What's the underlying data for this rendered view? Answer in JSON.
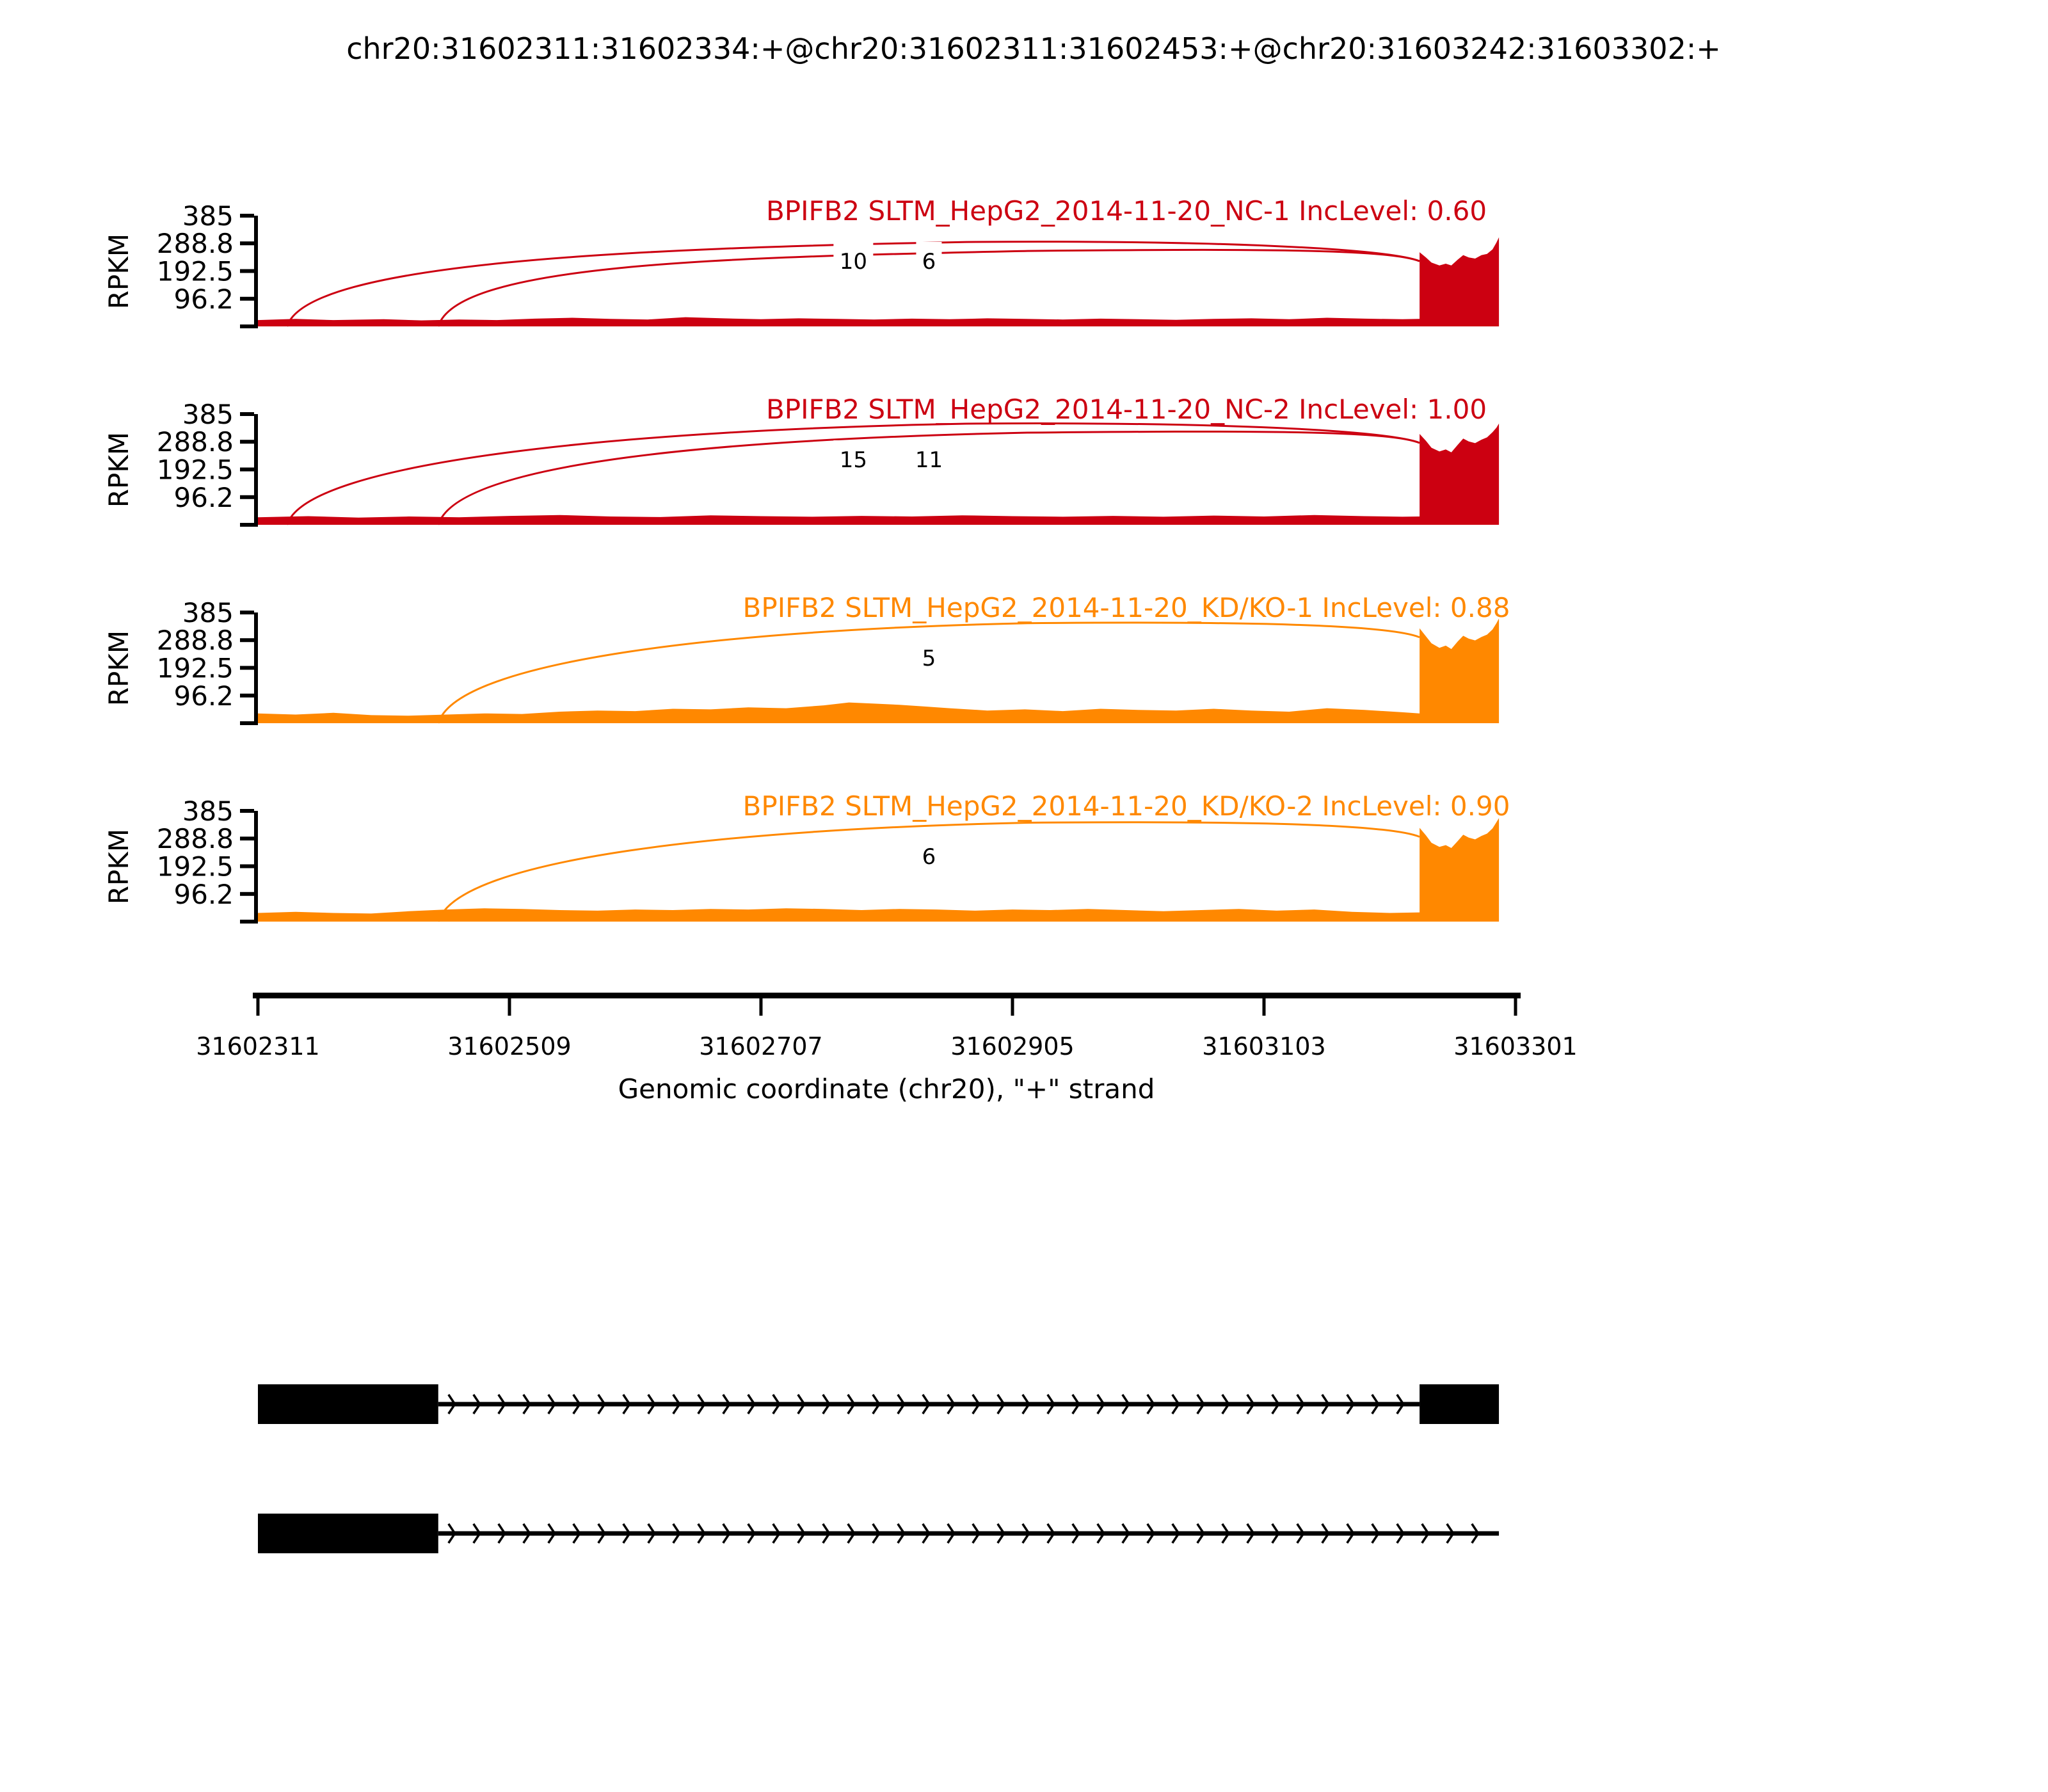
{
  "title": "chr20:31602311:31602334:+@chr20:31602311:31602453:+@chr20:31603242:31603302:+",
  "y_axis": {
    "label": "RPKM",
    "tick_labels": [
      "385",
      "288.8",
      "192.5",
      "96.2"
    ],
    "tick_values": [
      385,
      288.8,
      192.5,
      96.2
    ],
    "max": 385
  },
  "x_axis": {
    "label": "Genomic coordinate (chr20), \"+\" strand",
    "tick_labels": [
      "31602311",
      "31602509",
      "31602707",
      "31602905",
      "31603103",
      "31603301"
    ],
    "tick_values": [
      31602311,
      31602509,
      31602707,
      31602905,
      31603103,
      31603301
    ]
  },
  "chart_data": {
    "type": "sashimi",
    "region": {
      "chrom": "chr20",
      "start": 31602311,
      "end": 31603301,
      "strand": "+"
    },
    "event_exons": {
      "short_exon": [
        31602311,
        31602334
      ],
      "long_exon": [
        31602311,
        31602453
      ],
      "downstream_exon": [
        31603242,
        31603302
      ]
    },
    "rpkm_axis_max": 385,
    "tracks": [
      {
        "id": "NC-1",
        "label": "BPIFB2 SLTM_HepG2_2014-11-20_NC-1 IncLevel: 0.60",
        "color": "#CC0011",
        "inc_level": "0.60",
        "junctions": [
          {
            "from": 31602334,
            "to": 31603242,
            "reads": "10"
          },
          {
            "from": 31602453,
            "to": 31603242,
            "reads": "6"
          }
        ],
        "band": [
          [
            0,
            22
          ],
          [
            0.03,
            26
          ],
          [
            0.06,
            22
          ],
          [
            0.1,
            25
          ],
          [
            0.13,
            21
          ],
          [
            0.16,
            24
          ],
          [
            0.19,
            22
          ],
          [
            0.22,
            27
          ],
          [
            0.25,
            30
          ],
          [
            0.28,
            26
          ],
          [
            0.31,
            24
          ],
          [
            0.34,
            32
          ],
          [
            0.37,
            28
          ],
          [
            0.4,
            25
          ],
          [
            0.43,
            28
          ],
          [
            0.46,
            26
          ],
          [
            0.49,
            24
          ],
          [
            0.52,
            27
          ],
          [
            0.55,
            25
          ],
          [
            0.58,
            28
          ],
          [
            0.61,
            26
          ],
          [
            0.64,
            24
          ],
          [
            0.67,
            27
          ],
          [
            0.7,
            25
          ],
          [
            0.73,
            23
          ],
          [
            0.76,
            26
          ],
          [
            0.79,
            28
          ],
          [
            0.82,
            25
          ],
          [
            0.85,
            30
          ],
          [
            0.88,
            27
          ],
          [
            0.91,
            25
          ],
          [
            0.9237,
            26
          ]
        ],
        "block": [
          [
            0,
            258
          ],
          [
            0.08,
            240
          ],
          [
            0.15,
            222
          ],
          [
            0.25,
            212
          ],
          [
            0.33,
            218
          ],
          [
            0.4,
            212
          ],
          [
            0.48,
            232
          ],
          [
            0.55,
            248
          ],
          [
            0.62,
            240
          ],
          [
            0.7,
            236
          ],
          [
            0.78,
            248
          ],
          [
            0.85,
            252
          ],
          [
            0.92,
            268
          ],
          [
            0.97,
            292
          ],
          [
            1,
            310
          ]
        ]
      },
      {
        "id": "NC-2",
        "label": "BPIFB2 SLTM_HepG2_2014-11-20_NC-2 IncLevel: 1.00",
        "color": "#CC0011",
        "inc_level": "1.00",
        "junctions": [
          {
            "from": 31602334,
            "to": 31603242,
            "reads": "15"
          },
          {
            "from": 31602453,
            "to": 31603242,
            "reads": "11"
          }
        ],
        "band": [
          [
            0,
            26
          ],
          [
            0.04,
            30
          ],
          [
            0.08,
            25
          ],
          [
            0.12,
            29
          ],
          [
            0.16,
            26
          ],
          [
            0.2,
            31
          ],
          [
            0.24,
            34
          ],
          [
            0.28,
            29
          ],
          [
            0.32,
            27
          ],
          [
            0.36,
            33
          ],
          [
            0.4,
            30
          ],
          [
            0.44,
            28
          ],
          [
            0.48,
            31
          ],
          [
            0.52,
            29
          ],
          [
            0.56,
            33
          ],
          [
            0.6,
            30
          ],
          [
            0.64,
            28
          ],
          [
            0.68,
            31
          ],
          [
            0.72,
            28
          ],
          [
            0.76,
            32
          ],
          [
            0.8,
            29
          ],
          [
            0.84,
            34
          ],
          [
            0.88,
            30
          ],
          [
            0.91,
            28
          ],
          [
            0.9237,
            29
          ]
        ],
        "block": [
          [
            0,
            316
          ],
          [
            0.08,
            292
          ],
          [
            0.15,
            268
          ],
          [
            0.25,
            255
          ],
          [
            0.33,
            262
          ],
          [
            0.4,
            252
          ],
          [
            0.48,
            278
          ],
          [
            0.55,
            300
          ],
          [
            0.62,
            290
          ],
          [
            0.7,
            284
          ],
          [
            0.78,
            296
          ],
          [
            0.85,
            304
          ],
          [
            0.92,
            322
          ],
          [
            0.97,
            338
          ],
          [
            1,
            352
          ]
        ]
      },
      {
        "id": "KD/KO-1",
        "label": "BPIFB2 SLTM_HepG2_2014-11-20_KD/KO-1 IncLevel: 0.88",
        "color": "#FF8800",
        "inc_level": "0.88",
        "junctions": [
          {
            "from": 31602453,
            "to": 31603242,
            "reads": "5"
          }
        ],
        "band": [
          [
            0,
            34
          ],
          [
            0.03,
            30
          ],
          [
            0.06,
            36
          ],
          [
            0.09,
            28
          ],
          [
            0.12,
            26
          ],
          [
            0.15,
            30
          ],
          [
            0.18,
            34
          ],
          [
            0.21,
            32
          ],
          [
            0.24,
            40
          ],
          [
            0.27,
            44
          ],
          [
            0.3,
            42
          ],
          [
            0.33,
            50
          ],
          [
            0.36,
            48
          ],
          [
            0.39,
            55
          ],
          [
            0.42,
            52
          ],
          [
            0.45,
            62
          ],
          [
            0.47,
            72
          ],
          [
            0.49,
            68
          ],
          [
            0.51,
            64
          ],
          [
            0.53,
            58
          ],
          [
            0.55,
            52
          ],
          [
            0.58,
            44
          ],
          [
            0.61,
            48
          ],
          [
            0.64,
            42
          ],
          [
            0.67,
            50
          ],
          [
            0.7,
            46
          ],
          [
            0.73,
            44
          ],
          [
            0.76,
            50
          ],
          [
            0.79,
            44
          ],
          [
            0.82,
            40
          ],
          [
            0.85,
            52
          ],
          [
            0.88,
            46
          ],
          [
            0.91,
            38
          ],
          [
            0.9237,
            34
          ]
        ],
        "block": [
          [
            0,
            330
          ],
          [
            0.08,
            302
          ],
          [
            0.15,
            278
          ],
          [
            0.25,
            262
          ],
          [
            0.33,
            270
          ],
          [
            0.4,
            258
          ],
          [
            0.48,
            284
          ],
          [
            0.55,
            304
          ],
          [
            0.62,
            294
          ],
          [
            0.7,
            288
          ],
          [
            0.78,
            300
          ],
          [
            0.85,
            308
          ],
          [
            0.92,
            326
          ],
          [
            0.97,
            348
          ],
          [
            1,
            364
          ]
        ]
      },
      {
        "id": "KD/KO-2",
        "label": "BPIFB2 SLTM_HepG2_2014-11-20_KD/KO-2 IncLevel: 0.90",
        "color": "#FF8800",
        "inc_level": "0.90",
        "junctions": [
          {
            "from": 31602453,
            "to": 31603242,
            "reads": "6"
          }
        ],
        "band": [
          [
            0,
            30
          ],
          [
            0.03,
            34
          ],
          [
            0.06,
            30
          ],
          [
            0.09,
            28
          ],
          [
            0.12,
            36
          ],
          [
            0.15,
            42
          ],
          [
            0.18,
            46
          ],
          [
            0.21,
            44
          ],
          [
            0.24,
            40
          ],
          [
            0.27,
            38
          ],
          [
            0.3,
            42
          ],
          [
            0.33,
            40
          ],
          [
            0.36,
            44
          ],
          [
            0.39,
            42
          ],
          [
            0.42,
            46
          ],
          [
            0.45,
            44
          ],
          [
            0.48,
            40
          ],
          [
            0.51,
            44
          ],
          [
            0.54,
            42
          ],
          [
            0.57,
            38
          ],
          [
            0.6,
            42
          ],
          [
            0.63,
            40
          ],
          [
            0.66,
            44
          ],
          [
            0.69,
            40
          ],
          [
            0.72,
            36
          ],
          [
            0.75,
            40
          ],
          [
            0.78,
            44
          ],
          [
            0.81,
            38
          ],
          [
            0.84,
            42
          ],
          [
            0.87,
            34
          ],
          [
            0.9,
            30
          ],
          [
            0.9237,
            32
          ]
        ],
        "block": [
          [
            0,
            326
          ],
          [
            0.08,
            300
          ],
          [
            0.15,
            274
          ],
          [
            0.25,
            260
          ],
          [
            0.33,
            266
          ],
          [
            0.4,
            256
          ],
          [
            0.48,
            280
          ],
          [
            0.55,
            302
          ],
          [
            0.62,
            292
          ],
          [
            0.7,
            286
          ],
          [
            0.78,
            298
          ],
          [
            0.85,
            306
          ],
          [
            0.92,
            324
          ],
          [
            0.97,
            346
          ],
          [
            1,
            360
          ]
        ]
      }
    ],
    "isoforms": [
      {
        "exons_frac": [
          [
            0.0,
            0.1434
          ],
          [
            0.9237,
            0.9868
          ]
        ],
        "intron_frac": [
          0.1434,
          0.9237
        ]
      },
      {
        "exons_frac": [
          [
            0.0,
            0.1434
          ]
        ],
        "intron_frac": [
          0.1434,
          0.9868
        ]
      }
    ]
  }
}
